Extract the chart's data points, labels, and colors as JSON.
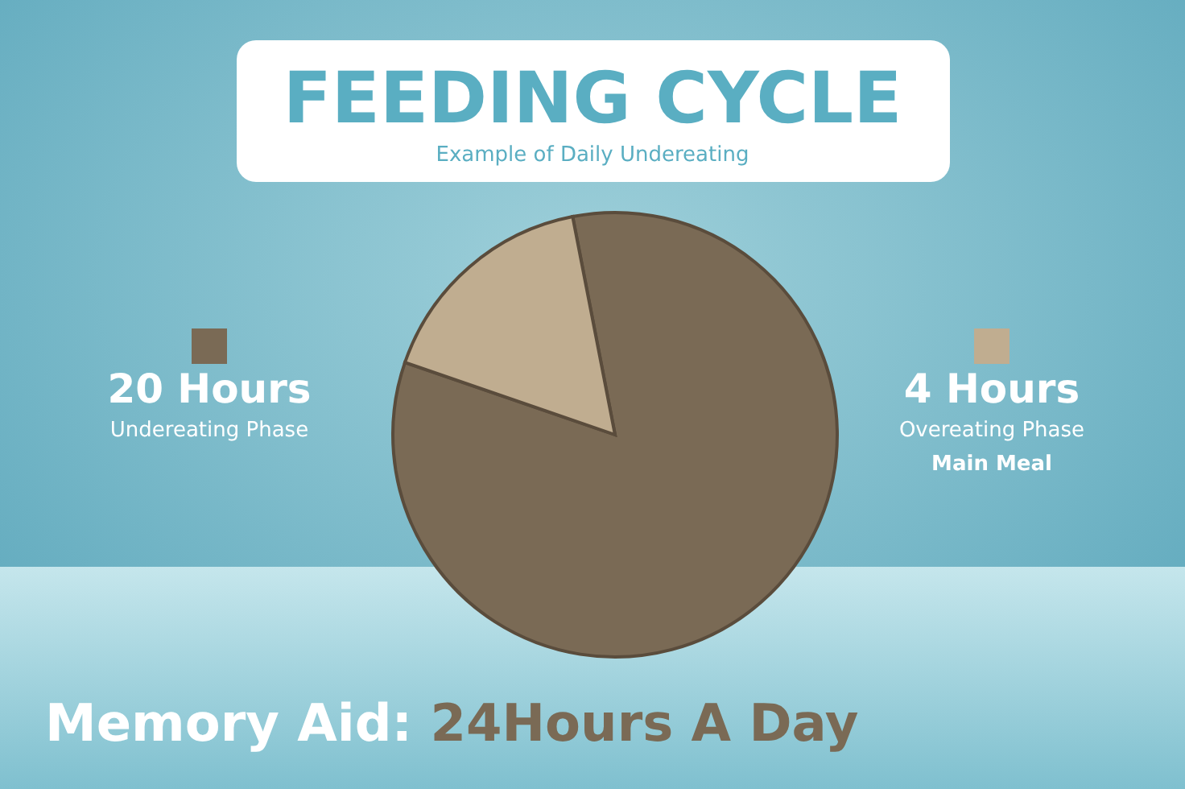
{
  "chart_data": {
    "type": "pie",
    "title": "FEEDING CYCLE",
    "subtitle": "Example of Daily Undereating",
    "categories": [
      "20 Hours",
      "4 Hours"
    ],
    "values": [
      20,
      4
    ],
    "colors": [
      "#7a6a55",
      "#c0ad90"
    ],
    "legend": "right",
    "annotations": [
      "Undereating Phase",
      "Overeating Phase",
      "Main Meal",
      "Memory Aid: 24Hours A Day"
    ]
  }
}
